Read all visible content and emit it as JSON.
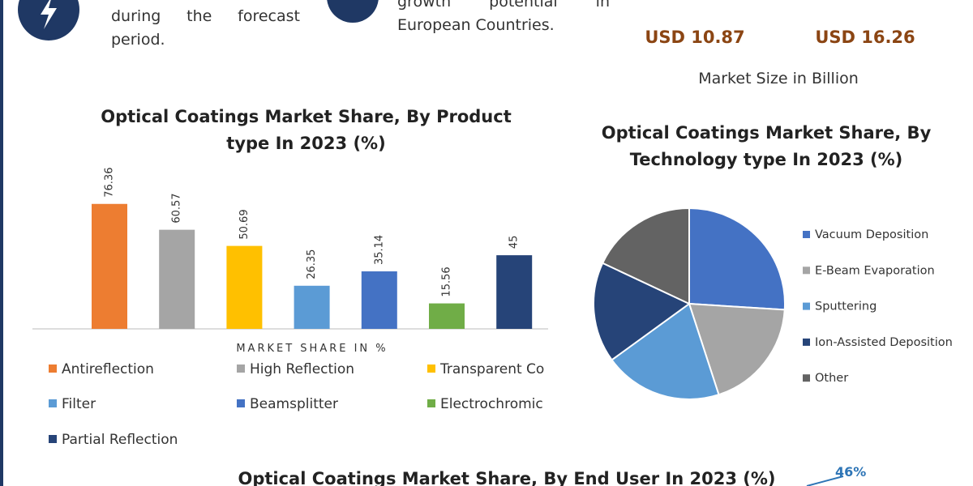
{
  "header": {
    "forecast_text": "during the forecast period.",
    "growth_text": "growth potential in European Countries.",
    "market_size": {
      "values": [
        "USD 10.87",
        "USD 16.26"
      ],
      "label": "Market Size in Billion"
    }
  },
  "chart_data": [
    {
      "type": "bar",
      "title": "Optical Coatings Market Share, By Product type In 2023 (%)",
      "x_label": "MARKET SHARE IN %",
      "categories": [
        "Antireflection",
        "High Reflection",
        "Transparent Co",
        "Filter",
        "Beamsplitter",
        "Electrochromic",
        "Partial Reflection"
      ],
      "values": [
        76.36,
        60.57,
        50.69,
        26.35,
        35.14,
        15.56,
        45
      ],
      "colors": [
        "#ed7d31",
        "#a5a5a5",
        "#ffc000",
        "#5b9bd5",
        "#4472c4",
        "#70ad47",
        "#264478"
      ]
    },
    {
      "type": "pie",
      "title": "Optical Coatings Market Share, By Technology type In 2023 (%)",
      "categories": [
        "Vacuum Deposition",
        "E-Beam Evaporation",
        "Sputtering",
        "Ion-Assisted Deposition",
        "Other"
      ],
      "values": [
        26,
        19,
        20,
        17,
        18
      ],
      "colors": [
        "#4472c4",
        "#a5a5a5",
        "#5b9bd5",
        "#264478",
        "#636363"
      ]
    }
  ],
  "footer": {
    "title": "Optical Coatings Market Share, By End User In 2023 (%)",
    "annotation": "46%"
  }
}
